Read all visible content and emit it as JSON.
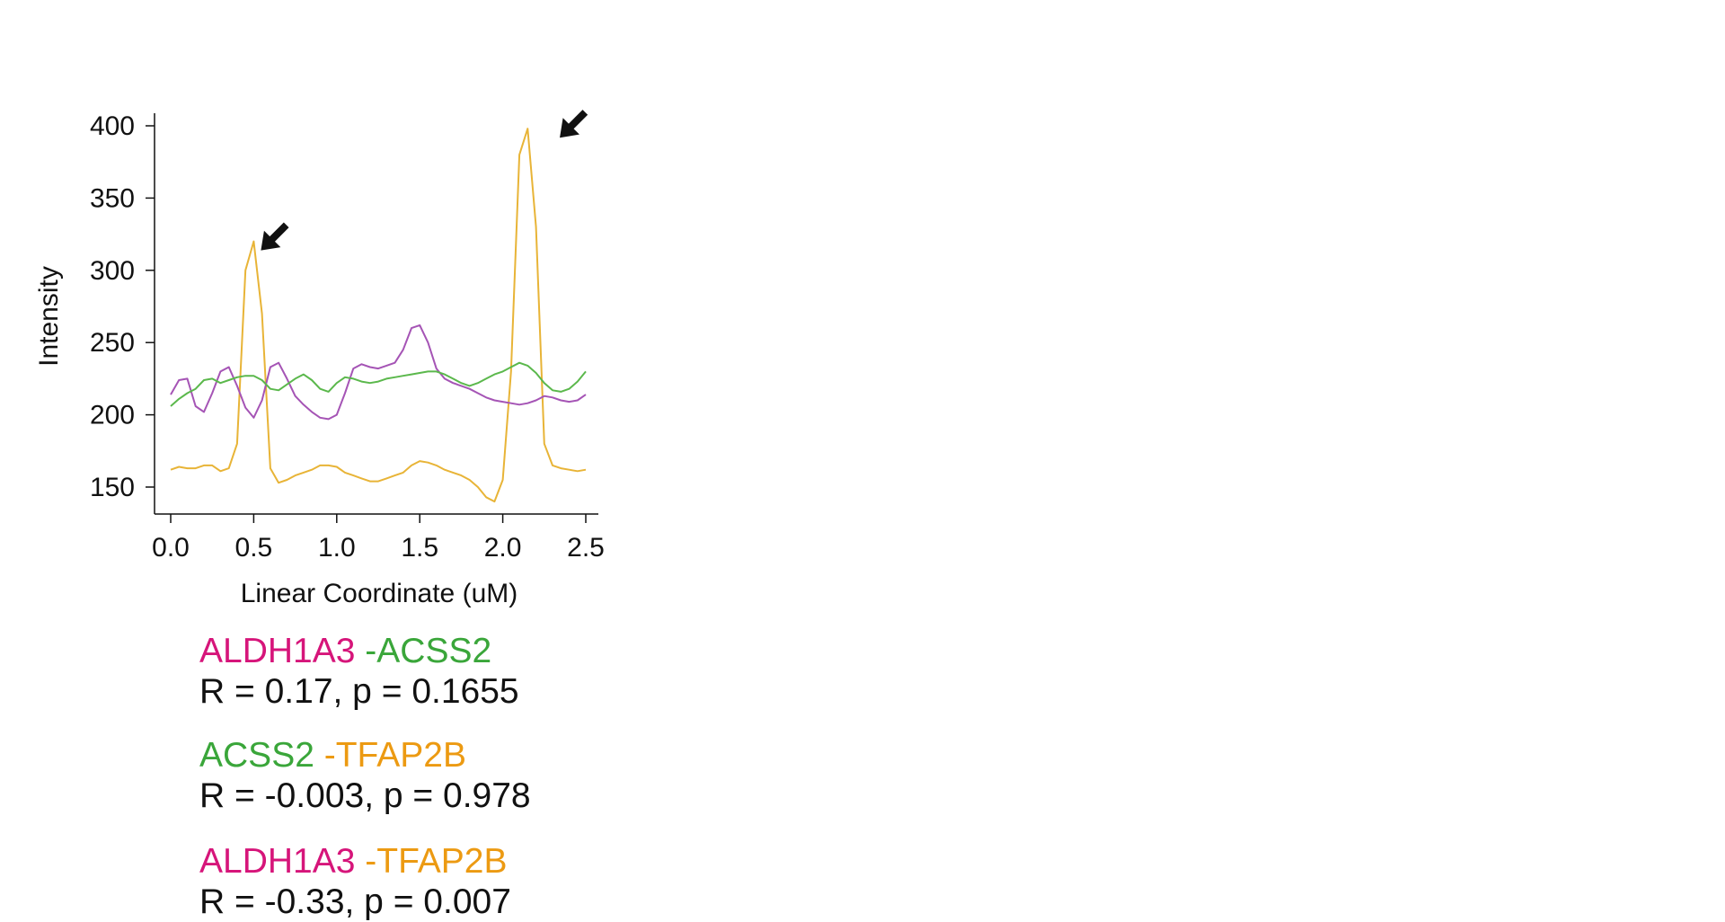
{
  "chart_data": {
    "type": "line",
    "title": "",
    "xlabel": "Linear Coordinate (uM)",
    "ylabel": "Intensity",
    "xlim": [
      -0.1,
      2.6
    ],
    "ylim": [
      140,
      410
    ],
    "xticks": [
      "0.0",
      "0.5",
      "1.0",
      "1.5",
      "2.0",
      "2.5"
    ],
    "yticks": [
      "150",
      "200",
      "250",
      "300",
      "350",
      "400"
    ],
    "grid": false,
    "legend": "none",
    "series": [
      {
        "color": "#e8b437",
        "x": [
          0,
          0.05,
          0.1,
          0.15,
          0.2,
          0.25,
          0.3,
          0.35,
          0.4,
          0.45,
          0.5,
          0.55,
          0.6,
          0.65,
          0.7,
          0.75,
          0.8,
          0.85,
          0.9,
          0.95,
          1.0,
          1.05,
          1.1,
          1.15,
          1.2,
          1.25,
          1.3,
          1.35,
          1.4,
          1.45,
          1.5,
          1.55,
          1.6,
          1.65,
          1.7,
          1.75,
          1.8,
          1.85,
          1.9,
          1.95,
          2.0,
          2.05,
          2.1,
          2.15,
          2.2,
          2.25,
          2.3,
          2.35,
          2.4,
          2.45,
          2.5
        ],
        "y": [
          162,
          164,
          163,
          163,
          165,
          165,
          161,
          163,
          180,
          300,
          320,
          270,
          163,
          153,
          155,
          158,
          160,
          162,
          165,
          165,
          164,
          160,
          158,
          156,
          154,
          154,
          156,
          158,
          160,
          165,
          168,
          167,
          165,
          162,
          160,
          158,
          155,
          150,
          143,
          140,
          155,
          230,
          380,
          398,
          330,
          180,
          165,
          163,
          162,
          161,
          162
        ]
      },
      {
        "color": "#a554b5",
        "x": [
          0,
          0.05,
          0.1,
          0.15,
          0.2,
          0.25,
          0.3,
          0.35,
          0.4,
          0.45,
          0.5,
          0.55,
          0.6,
          0.65,
          0.7,
          0.75,
          0.8,
          0.85,
          0.9,
          0.95,
          1.0,
          1.05,
          1.1,
          1.15,
          1.2,
          1.25,
          1.3,
          1.35,
          1.4,
          1.45,
          1.5,
          1.55,
          1.6,
          1.65,
          1.7,
          1.75,
          1.8,
          1.85,
          1.9,
          1.95,
          2.0,
          2.05,
          2.1,
          2.15,
          2.2,
          2.25,
          2.3,
          2.35,
          2.4,
          2.45,
          2.5
        ],
        "y": [
          214,
          224,
          225,
          206,
          202,
          215,
          230,
          233,
          220,
          205,
          198,
          210,
          233,
          236,
          225,
          213,
          207,
          202,
          198,
          197,
          200,
          215,
          232,
          235,
          233,
          232,
          234,
          236,
          245,
          260,
          262,
          250,
          232,
          225,
          222,
          220,
          218,
          215,
          212,
          210,
          209,
          208,
          207,
          208,
          210,
          213,
          212,
          210,
          209,
          210,
          214
        ]
      },
      {
        "color": "#5bb84c",
        "x": [
          0,
          0.05,
          0.1,
          0.15,
          0.2,
          0.25,
          0.3,
          0.35,
          0.4,
          0.45,
          0.5,
          0.55,
          0.6,
          0.65,
          0.7,
          0.75,
          0.8,
          0.85,
          0.9,
          0.95,
          1.0,
          1.05,
          1.1,
          1.15,
          1.2,
          1.25,
          1.3,
          1.35,
          1.4,
          1.45,
          1.5,
          1.55,
          1.6,
          1.65,
          1.7,
          1.75,
          1.8,
          1.85,
          1.9,
          1.95,
          2.0,
          2.05,
          2.1,
          2.15,
          2.2,
          2.25,
          2.3,
          2.35,
          2.4,
          2.45,
          2.5
        ],
        "y": [
          206,
          211,
          215,
          218,
          224,
          225,
          222,
          224,
          226,
          227,
          227,
          224,
          218,
          217,
          221,
          225,
          228,
          224,
          218,
          216,
          222,
          226,
          225,
          223,
          222,
          223,
          225,
          226,
          227,
          228,
          229,
          230,
          230,
          228,
          225,
          222,
          220,
          222,
          225,
          228,
          230,
          233,
          236,
          234,
          229,
          222,
          217,
          216,
          218,
          223,
          230
        ]
      }
    ],
    "annotations": [
      {
        "type": "arrow",
        "points_to": [
          0.5,
          320
        ]
      },
      {
        "type": "arrow",
        "points_to": [
          2.3,
          398
        ]
      }
    ]
  },
  "stats": [
    {
      "gene_a": "ALDH1A3",
      "color_a": "#d6157a",
      "gene_b": "-ACSS2",
      "color_b": "#3aa63a",
      "text": "R = 0.17, p = 0.1655"
    },
    {
      "gene_a": "ACSS2",
      "color_a": "#3aa63a",
      "gene_b": "-TFAP2B",
      "color_b": "#ec9a12",
      "text": "R = -0.003, p = 0.978"
    },
    {
      "gene_a": "ALDH1A3",
      "color_a": "#d6157a",
      "gene_b": "-TFAP2B",
      "color_b": "#ec9a12",
      "text": "R = -0.33, p = 0.007"
    }
  ]
}
